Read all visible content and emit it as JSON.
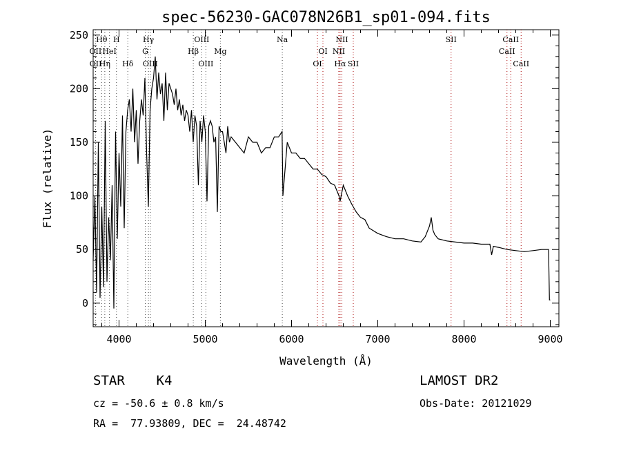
{
  "chart_data": {
    "type": "line",
    "title": "spec-56230-GAC078N26B1_sp01-094.fits",
    "xlabel": "Wavelength (Å)",
    "ylabel": "Flux (relative)",
    "xlim": [
      3700,
      9100
    ],
    "ylim": [
      -22,
      255
    ],
    "xticks": [
      4000,
      5000,
      6000,
      7000,
      8000,
      9000
    ],
    "yticks": [
      0,
      50,
      100,
      150,
      200,
      250
    ],
    "grid": false,
    "series": [
      {
        "name": "",
        "x": [
          3700,
          3720,
          3740,
          3760,
          3780,
          3800,
          3820,
          3840,
          3860,
          3880,
          3900,
          3920,
          3940,
          3960,
          3980,
          4000,
          4020,
          4040,
          4060,
          4080,
          4100,
          4120,
          4140,
          4160,
          4180,
          4200,
          4220,
          4240,
          4260,
          4280,
          4300,
          4320,
          4340,
          4360,
          4380,
          4400,
          4420,
          4440,
          4460,
          4480,
          4500,
          4520,
          4540,
          4560,
          4580,
          4600,
          4620,
          4640,
          4660,
          4680,
          4700,
          4720,
          4740,
          4760,
          4780,
          4800,
          4820,
          4840,
          4860,
          4880,
          4900,
          4920,
          4940,
          4960,
          4980,
          5000,
          5020,
          5040,
          5060,
          5080,
          5100,
          5120,
          5140,
          5160,
          5180,
          5200,
          5220,
          5240,
          5260,
          5280,
          5300,
          5350,
          5400,
          5450,
          5500,
          5550,
          5600,
          5650,
          5700,
          5750,
          5800,
          5850,
          5890,
          5900,
          5950,
          6000,
          6050,
          6100,
          6150,
          6200,
          6250,
          6300,
          6350,
          6400,
          6450,
          6500,
          6550,
          6563,
          6600,
          6650,
          6700,
          6750,
          6800,
          6850,
          6900,
          7000,
          7100,
          7200,
          7300,
          7400,
          7500,
          7550,
          7600,
          7620,
          7640,
          7660,
          7700,
          7800,
          7900,
          8000,
          8100,
          8200,
          8300,
          8320,
          8340,
          8400,
          8500,
          8600,
          8700,
          8800,
          8900,
          8980,
          8990,
          9000
        ],
        "values": [
          40,
          100,
          10,
          150,
          5,
          90,
          15,
          170,
          20,
          80,
          40,
          110,
          -5,
          160,
          60,
          140,
          90,
          175,
          70,
          160,
          180,
          190,
          160,
          200,
          150,
          180,
          130,
          170,
          190,
          175,
          210,
          140,
          90,
          180,
          200,
          210,
          230,
          190,
          215,
          195,
          205,
          170,
          215,
          180,
          205,
          200,
          195,
          185,
          200,
          180,
          190,
          175,
          185,
          170,
          180,
          175,
          160,
          180,
          150,
          175,
          165,
          110,
          170,
          150,
          175,
          160,
          95,
          165,
          170,
          165,
          150,
          155,
          85,
          165,
          160,
          160,
          150,
          140,
          165,
          150,
          155,
          150,
          145,
          140,
          155,
          150,
          150,
          140,
          145,
          145,
          155,
          155,
          160,
          100,
          150,
          140,
          140,
          135,
          135,
          130,
          125,
          125,
          120,
          118,
          112,
          110,
          100,
          95,
          110,
          100,
          92,
          85,
          80,
          78,
          70,
          65,
          62,
          60,
          60,
          58,
          57,
          62,
          72,
          80,
          68,
          64,
          60,
          58,
          57,
          56,
          56,
          55,
          55,
          45,
          53,
          52,
          50,
          49,
          48,
          49,
          50,
          50,
          3,
          3
        ]
      }
    ],
    "line_marks": [
      {
        "label": "Hθ",
        "x": 3798,
        "color": "#444444",
        "row": 1
      },
      {
        "label": "H",
        "x": 3970,
        "color": "#444444",
        "row": 1
      },
      {
        "label": "Hγ",
        "x": 4341,
        "color": "#444444",
        "row": 1
      },
      {
        "label": "OIII",
        "x": 4959,
        "color": "#444444",
        "row": 1
      },
      {
        "label": "Na",
        "x": 5893,
        "color": "#444444",
        "row": 1
      },
      {
        "label": "NII",
        "x": 6584,
        "color": "#aa0000",
        "row": 1
      },
      {
        "label": "SII",
        "x": 7850,
        "color": "#aa0000",
        "row": 1
      },
      {
        "label": "CaII",
        "x": 8542,
        "color": "#aa0000",
        "row": 1
      },
      {
        "label": "OII",
        "x": 3727,
        "color": "#444444",
        "row": 2
      },
      {
        "label": "HeI",
        "x": 3889,
        "color": "#444444",
        "row": 2
      },
      {
        "label": "G",
        "x": 4304,
        "color": "#444444",
        "row": 2
      },
      {
        "label": "Hβ",
        "x": 4861,
        "color": "#444444",
        "row": 2
      },
      {
        "label": "Mg",
        "x": 5175,
        "color": "#444444",
        "row": 2
      },
      {
        "label": "OI",
        "x": 6364,
        "color": "#aa0000",
        "row": 2
      },
      {
        "label": "NII",
        "x": 6548,
        "color": "#aa0000",
        "row": 2
      },
      {
        "label": "CaII",
        "x": 8498,
        "color": "#aa0000",
        "row": 2
      },
      {
        "label": "OII",
        "x": 3729,
        "color": "#444444",
        "row": 3
      },
      {
        "label": "Hη",
        "x": 3835,
        "color": "#444444",
        "row": 3
      },
      {
        "label": "Hδ",
        "x": 4102,
        "color": "#444444",
        "row": 3
      },
      {
        "label": "OIII",
        "x": 4363,
        "color": "#444444",
        "row": 3
      },
      {
        "label": "OIII",
        "x": 5007,
        "color": "#444444",
        "row": 3
      },
      {
        "label": "OI",
        "x": 6300,
        "color": "#aa0000",
        "row": 3
      },
      {
        "label": "Hα",
        "x": 6563,
        "color": "#aa0000",
        "row": 3
      },
      {
        "label": "SII",
        "x": 6716,
        "color": "#aa0000",
        "row": 3
      },
      {
        "label": "CaII",
        "x": 8662,
        "color": "#aa0000",
        "row": 3
      }
    ]
  },
  "info": {
    "classification": "STAR    K4",
    "survey": "LAMOST DR2",
    "redshift": "cz = -50.6 ± 0.8 km/s",
    "obs_date": "Obs-Date: 20121029",
    "coords": "RA =  77.93809, DEC =  24.48742"
  }
}
